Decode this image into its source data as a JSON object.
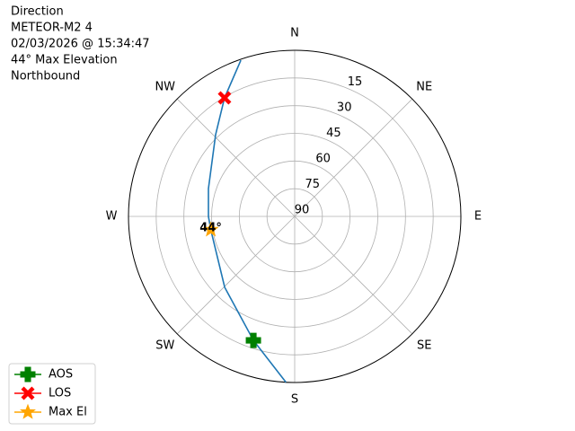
{
  "chart_data": {
    "type": "polar",
    "text_lines": [
      "Direction",
      "METEOR-M2 4",
      "02/03/2026 @ 15:34:47",
      "44° Max Elevation",
      "Northbound"
    ],
    "thetaticks": [
      {
        "value": 0,
        "label": "N"
      },
      {
        "value": 45,
        "label": "NE"
      },
      {
        "value": 90,
        "label": "E"
      },
      {
        "value": 135,
        "label": "SE"
      },
      {
        "value": 180,
        "label": "S"
      },
      {
        "value": 225,
        "label": "SW"
      },
      {
        "value": 270,
        "label": "W"
      },
      {
        "value": 315,
        "label": "NW"
      }
    ],
    "rlim": [
      90,
      0
    ],
    "rticks": [
      90,
      75,
      60,
      45,
      30,
      15
    ],
    "grid": true,
    "track": {
      "color": "#1f77b4",
      "azimuth": [
        183,
        198.4,
        224.6,
        261,
        270,
        287.9,
        316,
        329.4,
        341
      ],
      "elevation": [
        0,
        19.2,
        36,
        44,
        43.3,
        40.9,
        28.4,
        15.4,
        0.5
      ]
    },
    "series": [
      {
        "name": "AOS",
        "color": "#008000",
        "marker": "plus",
        "azimuth": [
          198.4
        ],
        "elevation": [
          19.2
        ]
      },
      {
        "name": "LOS",
        "color": "#ff0000",
        "marker": "x",
        "azimuth": [
          329.4
        ],
        "elevation": [
          15.4
        ]
      },
      {
        "name": "Max El",
        "color": "#ffa500",
        "marker": "star",
        "azimuth": [
          261
        ],
        "elevation": [
          44
        ],
        "value_labels": [
          "44°"
        ]
      }
    ],
    "legend": "lower left"
  }
}
